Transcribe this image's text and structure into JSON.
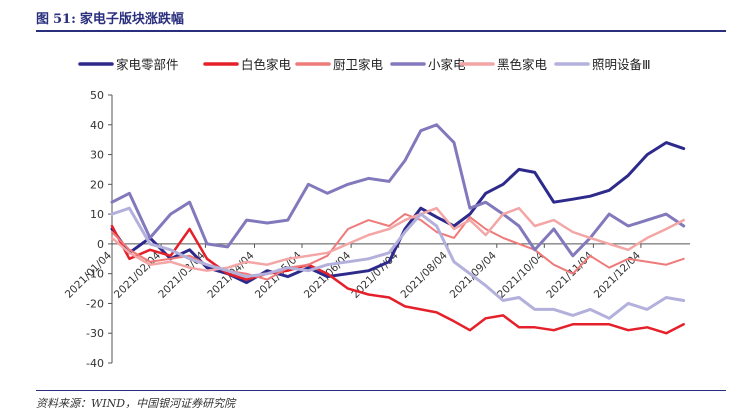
{
  "figure": {
    "label": "图",
    "number": "51:",
    "title": "家电子版块涨跌幅",
    "source": "资料来源：WIND，中国银河证券研究院"
  },
  "chart_data": {
    "type": "line",
    "ylim": [
      -40,
      50
    ],
    "yticks": [
      -40,
      -30,
      -20,
      -10,
      0,
      10,
      20,
      30,
      40,
      50
    ],
    "xlim": [
      "2021-01-04",
      "2022-01-04"
    ],
    "xtick_labels": [
      "2021/01/04",
      "2021/02/04",
      "2021/03/04",
      "2021/04/04",
      "2021/05/04",
      "2021/06/04",
      "2021/07/04",
      "2021/08/04",
      "2021/09/04",
      "2021/10/04",
      "2021/11/04",
      "2021/12/04"
    ],
    "xtick_dates": [
      "2021-01-04",
      "2021-02-04",
      "2021-03-04",
      "2021-04-04",
      "2021-05-04",
      "2021-06-04",
      "2021-07-04",
      "2021-08-04",
      "2021-09-04",
      "2021-10-04",
      "2021-11-04",
      "2021-12-04"
    ],
    "grid": false,
    "legend_position": "top",
    "series": [
      {
        "name": "家电零部件",
        "color": "#2e2a8c",
        "width": 3,
        "x": [
          "2021-01-04",
          "2021-01-15",
          "2021-01-28",
          "2021-02-10",
          "2021-02-22",
          "2021-03-05",
          "2021-03-18",
          "2021-03-30",
          "2021-04-12",
          "2021-04-25",
          "2021-05-08",
          "2021-05-20",
          "2021-06-02",
          "2021-06-15",
          "2021-06-28",
          "2021-07-08",
          "2021-07-18",
          "2021-07-28",
          "2021-08-08",
          "2021-08-18",
          "2021-08-28",
          "2021-09-08",
          "2021-09-18",
          "2021-09-28",
          "2021-10-10",
          "2021-10-22",
          "2021-11-02",
          "2021-11-14",
          "2021-11-26",
          "2021-12-08",
          "2021-12-20",
          "2021-12-31"
        ],
        "y": [
          5,
          -3,
          2,
          -5,
          -2,
          -8,
          -10,
          -13,
          -9,
          -11,
          -8,
          -11,
          -10,
          -9,
          -6,
          5,
          12,
          9,
          6,
          10,
          17,
          20,
          25,
          24,
          14,
          15,
          16,
          18,
          23,
          30,
          34,
          32
        ]
      },
      {
        "name": "白色家电",
        "color": "#e5202a",
        "width": 2.5,
        "x": [
          "2021-01-04",
          "2021-01-15",
          "2021-01-28",
          "2021-02-10",
          "2021-02-22",
          "2021-03-05",
          "2021-03-18",
          "2021-03-30",
          "2021-04-12",
          "2021-04-25",
          "2021-05-08",
          "2021-05-20",
          "2021-06-02",
          "2021-06-15",
          "2021-06-28",
          "2021-07-08",
          "2021-07-18",
          "2021-07-28",
          "2021-08-08",
          "2021-08-18",
          "2021-08-28",
          "2021-09-08",
          "2021-09-18",
          "2021-09-28",
          "2021-10-10",
          "2021-10-22",
          "2021-11-02",
          "2021-11-14",
          "2021-11-26",
          "2021-12-08",
          "2021-12-20",
          "2021-12-31"
        ],
        "y": [
          6,
          -5,
          -2,
          -4,
          5,
          -5,
          -10,
          -12,
          -10,
          -9,
          -7,
          -10,
          -15,
          -17,
          -18,
          -21,
          -22,
          -23,
          -26,
          -29,
          -25,
          -24,
          -28,
          -28,
          -29,
          -27,
          -27,
          -27,
          -29,
          -28,
          -30,
          -27
        ]
      },
      {
        "name": "厨卫家电",
        "color": "#ee7a7a",
        "width": 2,
        "x": [
          "2021-01-04",
          "2021-01-15",
          "2021-01-28",
          "2021-02-10",
          "2021-02-22",
          "2021-03-05",
          "2021-03-18",
          "2021-03-30",
          "2021-04-12",
          "2021-04-25",
          "2021-05-08",
          "2021-05-20",
          "2021-06-02",
          "2021-06-15",
          "2021-06-28",
          "2021-07-08",
          "2021-07-18",
          "2021-07-28",
          "2021-08-08",
          "2021-08-18",
          "2021-08-28",
          "2021-09-08",
          "2021-09-18",
          "2021-09-28",
          "2021-10-10",
          "2021-10-22",
          "2021-11-02",
          "2021-11-14",
          "2021-11-26",
          "2021-12-08",
          "2021-12-20",
          "2021-12-31"
        ],
        "y": [
          4,
          -2,
          -6,
          -5,
          -4,
          -7,
          -9,
          -10,
          -12,
          -8,
          -7,
          -4,
          5,
          8,
          6,
          10,
          8,
          4,
          2,
          9,
          5,
          2,
          0,
          -2,
          -7,
          -10,
          -4,
          -8,
          -5,
          -6,
          -7,
          -5
        ]
      },
      {
        "name": "小家电",
        "color": "#8279bd",
        "width": 3,
        "x": [
          "2021-01-04",
          "2021-01-15",
          "2021-01-28",
          "2021-02-10",
          "2021-02-22",
          "2021-03-05",
          "2021-03-18",
          "2021-03-30",
          "2021-04-12",
          "2021-04-25",
          "2021-05-08",
          "2021-05-20",
          "2021-06-02",
          "2021-06-15",
          "2021-06-28",
          "2021-07-08",
          "2021-07-18",
          "2021-07-28",
          "2021-08-08",
          "2021-08-18",
          "2021-08-28",
          "2021-09-08",
          "2021-09-18",
          "2021-09-28",
          "2021-10-10",
          "2021-10-22",
          "2021-11-02",
          "2021-11-14",
          "2021-11-26",
          "2021-12-08",
          "2021-12-20",
          "2021-12-31"
        ],
        "y": [
          14,
          17,
          2,
          10,
          14,
          0,
          -1,
          8,
          7,
          8,
          20,
          17,
          20,
          22,
          21,
          28,
          38,
          40,
          34,
          12,
          14,
          10,
          6,
          -2,
          5,
          -4,
          2,
          10,
          6,
          8,
          10,
          6
        ]
      },
      {
        "name": "黑色家电",
        "color": "#f4a6a6",
        "width": 2.5,
        "x": [
          "2021-01-04",
          "2021-01-15",
          "2021-01-28",
          "2021-02-10",
          "2021-02-22",
          "2021-03-05",
          "2021-03-18",
          "2021-03-30",
          "2021-04-12",
          "2021-04-25",
          "2021-05-08",
          "2021-05-20",
          "2021-06-02",
          "2021-06-15",
          "2021-06-28",
          "2021-07-08",
          "2021-07-18",
          "2021-07-28",
          "2021-08-08",
          "2021-08-18",
          "2021-08-28",
          "2021-09-08",
          "2021-09-18",
          "2021-09-28",
          "2021-10-10",
          "2021-10-22",
          "2021-11-02",
          "2021-11-14",
          "2021-11-26",
          "2021-12-08",
          "2021-12-20",
          "2021-12-31"
        ],
        "y": [
          2,
          -3,
          -7,
          -6,
          -8,
          -9,
          -8,
          -6,
          -7,
          -5,
          -4,
          -3,
          0,
          3,
          5,
          8,
          10,
          12,
          5,
          8,
          3,
          10,
          12,
          6,
          8,
          4,
          2,
          0,
          -2,
          2,
          5,
          8
        ]
      },
      {
        "name": "照明设备Ⅲ",
        "color": "#b3b0dc",
        "width": 3,
        "x": [
          "2021-01-04",
          "2021-01-15",
          "2021-01-28",
          "2021-02-10",
          "2021-02-22",
          "2021-03-05",
          "2021-03-18",
          "2021-03-30",
          "2021-04-12",
          "2021-04-25",
          "2021-05-08",
          "2021-05-20",
          "2021-06-02",
          "2021-06-15",
          "2021-06-28",
          "2021-07-08",
          "2021-07-18",
          "2021-07-28",
          "2021-08-08",
          "2021-08-18",
          "2021-08-28",
          "2021-09-08",
          "2021-09-18",
          "2021-09-28",
          "2021-10-10",
          "2021-10-22",
          "2021-11-02",
          "2021-11-14",
          "2021-11-26",
          "2021-12-08",
          "2021-12-20",
          "2021-12-31"
        ],
        "y": [
          10,
          12,
          0,
          -2,
          -5,
          -7,
          -9,
          -11,
          -10,
          -8,
          -9,
          -7,
          -6,
          -5,
          -3,
          4,
          10,
          6,
          -6,
          -10,
          -14,
          -19,
          -18,
          -22,
          -22,
          -24,
          -22,
          -25,
          -20,
          -22,
          -18,
          -19
        ]
      }
    ]
  }
}
